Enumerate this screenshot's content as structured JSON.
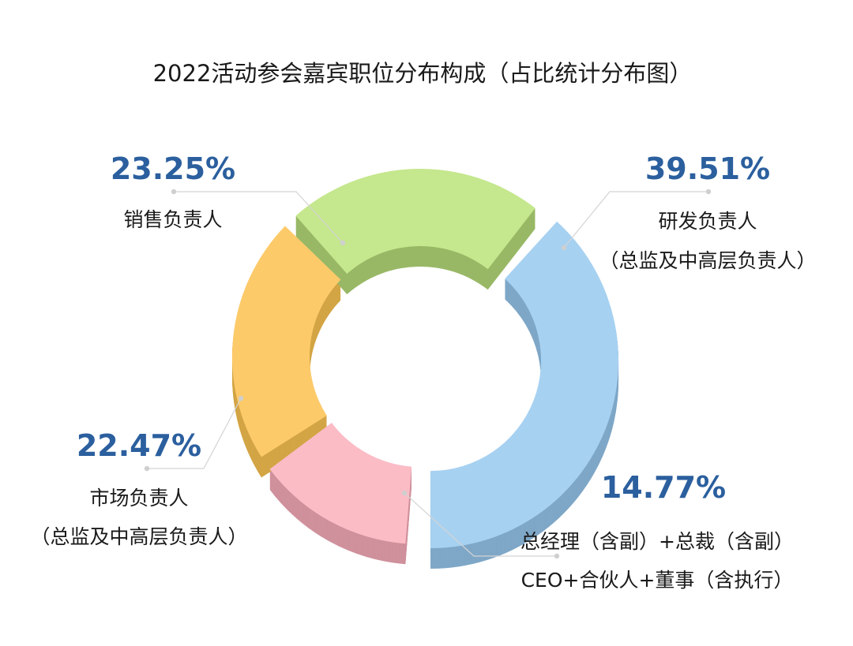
{
  "chart_data": {
    "type": "pie",
    "title": "2022活动参会嘉宾职位分布构成（占比统计分布图）",
    "unit": "%",
    "style": "3d-donut",
    "slices": [
      {
        "label_lines": [
          "研发负责人",
          "（总监及中高层负责人）"
        ],
        "value": 39.51,
        "value_label": "39.51%",
        "color": "#a7d1f1",
        "side_color": "#7fa7c7"
      },
      {
        "label_lines": [
          "总经理（含副）+总裁（含副）",
          "CEO+合伙人+董事（含执行）"
        ],
        "value": 14.77,
        "value_label": "14.77%",
        "color": "#fbbcc6",
        "side_color": "#cf919c"
      },
      {
        "label_lines": [
          "市场负责人",
          "（总监及中高层负责人）"
        ],
        "value": 22.47,
        "value_label": "22.47%",
        "color": "#fdca6a",
        "side_color": "#d3a545"
      },
      {
        "label_lines": [
          "销售负责人"
        ],
        "value": 23.25,
        "value_label": "23.25%",
        "color": "#c5e78d",
        "side_color": "#99b866"
      }
    ]
  }
}
